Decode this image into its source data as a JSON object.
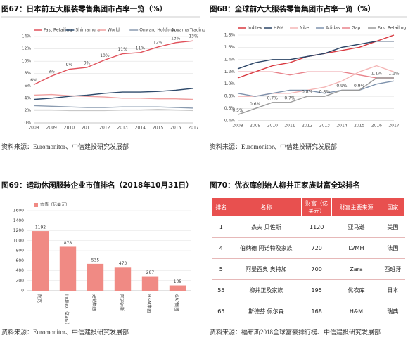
{
  "chart_data": [
    {
      "type": "line",
      "title": "图67：日本前五大服装零售集团市占率一览（%）",
      "source": "资料来源：Euromonitor、中信建投研究发展部",
      "categories": [
        "2008",
        "2009",
        "2010",
        "2011",
        "2012",
        "2013",
        "2014",
        "2015",
        "2016",
        "2017"
      ],
      "series": [
        {
          "name": "Fast Retailing",
          "color": "#e0505a",
          "values": [
            6.2,
            7.6,
            8.7,
            9.0,
            10.2,
            11.2,
            11.4,
            12.3,
            13.0,
            13.3
          ],
          "value_labels": [
            "6%",
            "8%",
            "9%",
            "9%",
            "10%",
            "11%",
            "11%",
            "12%",
            "13%",
            "13%"
          ]
        },
        {
          "name": "Shimamura",
          "color": "#2e4a6b",
          "values": [
            3.8,
            4.0,
            4.3,
            4.5,
            4.8,
            5.0,
            5.0,
            5.1,
            5.3,
            5.6
          ]
        },
        {
          "name": "World",
          "color": "#f0a0a0",
          "values": [
            4.5,
            4.6,
            4.4,
            4.3,
            4.2,
            4.0,
            4.0,
            3.9,
            3.9,
            3.8
          ]
        },
        {
          "name": "Onward Holdings",
          "color": "#8a9bb0",
          "values": [
            2.8,
            2.7,
            2.6,
            2.5,
            2.5,
            2.6,
            2.6,
            2.6,
            2.5,
            2.4
          ]
        },
        {
          "name": "Aoyama Trading",
          "color": "#c8c8c8",
          "values": [
            2.1,
            2.1,
            2.0,
            2.0,
            2.0,
            2.1,
            2.1,
            2.2,
            2.1,
            2.0
          ]
        }
      ],
      "ylim": [
        0,
        14
      ],
      "yticks": [
        {
          "value": 0,
          "label": "0%"
        },
        {
          "value": 2,
          "label": "2%"
        },
        {
          "value": 4,
          "label": "4%"
        },
        {
          "value": 6,
          "label": "6%"
        },
        {
          "value": 8,
          "label": "8%"
        },
        {
          "value": 10,
          "label": "10%"
        },
        {
          "value": 12,
          "label": "12%"
        },
        {
          "value": 14,
          "label": "14%"
        }
      ],
      "grid": true
    },
    {
      "type": "line",
      "title": "图68：全球前六大服装零售集团市占率一览（%）",
      "source": "资料来源：Euromonitor、中信建投研究发展部",
      "categories": [
        "2008",
        "2009",
        "2010",
        "2011",
        "2012",
        "2013",
        "2014",
        "2015",
        "2016",
        "2017"
      ],
      "series": [
        {
          "name": "Inditex",
          "color": "#d9383f",
          "values": [
            1.1,
            1.2,
            1.3,
            1.35,
            1.45,
            1.5,
            1.55,
            1.6,
            1.7,
            1.8
          ]
        },
        {
          "name": "H&M",
          "color": "#2b4466",
          "values": [
            1.25,
            1.35,
            1.4,
            1.4,
            1.45,
            1.5,
            1.6,
            1.65,
            1.7,
            1.7
          ]
        },
        {
          "name": "Nike",
          "color": "#f4b6b6",
          "values": [
            0.8,
            0.8,
            0.85,
            0.85,
            0.9,
            0.95,
            1.05,
            1.2,
            1.3,
            1.2
          ]
        },
        {
          "name": "Adidas",
          "color": "#7f93ad",
          "values": [
            0.85,
            0.8,
            0.85,
            0.9,
            0.9,
            0.85,
            0.9,
            0.9,
            1.0,
            1.05
          ]
        },
        {
          "name": "Gap",
          "color": "#e8828a",
          "values": [
            1.2,
            1.2,
            1.2,
            1.15,
            1.2,
            1.2,
            1.2,
            1.15,
            1.1,
            1.1
          ]
        },
        {
          "name": "Fast Retailing",
          "color": "#9a9a9a",
          "values": [
            0.5,
            0.6,
            0.7,
            0.7,
            0.8,
            0.8,
            0.9,
            0.9,
            1.1,
            1.1
          ],
          "value_labels": [
            "0.5%",
            "0.6%",
            "0.7%",
            "0.7%",
            "0.8%",
            "0.8%",
            "0.9%",
            "0.9%",
            "1.1%",
            "1.1%"
          ]
        }
      ],
      "ylim": [
        0.4,
        1.8
      ],
      "yticks": [
        {
          "value": 0.4,
          "label": "0.4%"
        },
        {
          "value": 0.6,
          "label": "0.6%"
        },
        {
          "value": 0.8,
          "label": "0.8%"
        },
        {
          "value": 1.0,
          "label": "1.0%"
        },
        {
          "value": 1.2,
          "label": "1.2%"
        },
        {
          "value": 1.4,
          "label": "1.4%"
        },
        {
          "value": 1.6,
          "label": "1.6%"
        },
        {
          "value": 1.8,
          "label": "1.8%"
        }
      ],
      "grid": true
    },
    {
      "type": "bar",
      "title": "图69：运动休闲服装企业市值排名（2018年10月31日）",
      "source": "资料来源：Euromonitor、中信建投研究发展部",
      "categories": [
        "耐克",
        "Inditex（Zara）",
        "迅销集团",
        "阿迪达斯",
        "H&M集团",
        "GAP集团"
      ],
      "series": [
        {
          "name": "市值（亿美元）",
          "color": "#f08a84",
          "values": [
            1192,
            878,
            535,
            473,
            287,
            105
          ]
        }
      ],
      "ylim": [
        0,
        1600
      ],
      "yticks": [
        0,
        200,
        400,
        600,
        800,
        1000,
        1200,
        1400,
        1600
      ],
      "grid": true
    }
  ],
  "table": {
    "title": "图70：优衣库创始人柳井正家族财富全球排名",
    "source": "资料来源：福布斯2018全球富豪排行榜、中信建投研究发展部",
    "header": [
      "排名",
      "名称",
      "财富（亿美元）",
      "财富主要来源",
      "国家"
    ],
    "rows": [
      [
        "1",
        "杰夫 贝佐斯",
        "1120",
        "亚马逊",
        "美国"
      ],
      [
        "4",
        "伯纳德 阿诺特及家族",
        "720",
        "LVMH",
        "法国"
      ],
      [
        "5",
        "阿曼西奥 奥特加",
        "700",
        "Zara",
        "西班牙"
      ],
      [
        "55",
        "柳井正及家族",
        "195",
        "优衣库",
        "日本"
      ],
      [
        "65",
        "斯德芬 佩尔森",
        "168",
        "H&M",
        "瑞典"
      ]
    ]
  }
}
